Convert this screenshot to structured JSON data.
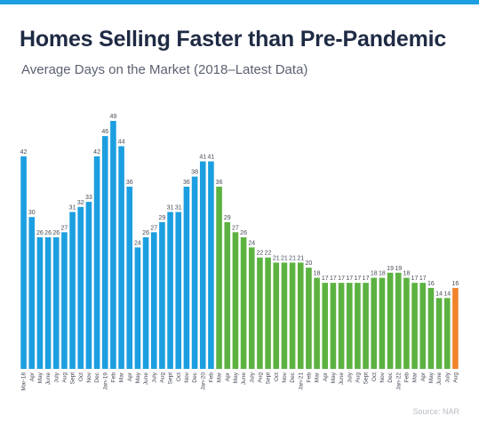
{
  "header": {
    "title": "Homes Selling Faster than Pre-Pandemic",
    "subtitle": "Average Days on the Market (2018–Latest Data)"
  },
  "footer": {
    "source": "Source: NAR"
  },
  "colors": {
    "pre_pandemic": "#1c9fe0",
    "pandemic": "#5cb240",
    "latest": "#f0832c",
    "accent_bar": "#1c9fe0"
  },
  "chart_data": {
    "type": "bar",
    "title": "Homes Selling Faster than Pre-Pandemic",
    "subtitle": "Average Days on the Market (2018–Latest Data)",
    "xlabel": "",
    "ylabel": "",
    "ylim": [
      0,
      52
    ],
    "grid": false,
    "legend": "none",
    "categories": [
      "Mar-18",
      "Apr",
      "May",
      "June",
      "July",
      "Aug",
      "Sept",
      "Oct",
      "Nov",
      "Dec",
      "Jan-19",
      "Feb",
      "Mar",
      "Apr",
      "May",
      "June",
      "July",
      "Aug",
      "Sept",
      "Oct",
      "Nov",
      "Dec",
      "Jan-20",
      "Feb",
      "Mar",
      "Apr",
      "May",
      "June",
      "July",
      "Aug",
      "Sept",
      "Oct",
      "Nov",
      "Dec",
      "Jan-21",
      "Feb",
      "Mar",
      "Apr",
      "May",
      "June",
      "July",
      "Aug",
      "Sept",
      "Oct",
      "Nov",
      "Dec",
      "Jan-22",
      "Feb",
      "Mar",
      "Apr",
      "May",
      "June",
      "July",
      "Aug"
    ],
    "values": [
      42,
      30,
      26,
      26,
      26,
      27,
      31,
      32,
      33,
      42,
      46,
      49,
      44,
      36,
      24,
      26,
      27,
      29,
      31,
      31,
      36,
      38,
      41,
      41,
      36,
      29,
      27,
      26,
      24,
      22,
      22,
      21,
      21,
      21,
      21,
      20,
      18,
      17,
      17,
      17,
      17,
      17,
      17,
      18,
      18,
      19,
      19,
      18,
      17,
      17,
      16,
      14,
      14,
      16
    ],
    "colors": [
      "#1c9fe0",
      "#1c9fe0",
      "#1c9fe0",
      "#1c9fe0",
      "#1c9fe0",
      "#1c9fe0",
      "#1c9fe0",
      "#1c9fe0",
      "#1c9fe0",
      "#1c9fe0",
      "#1c9fe0",
      "#1c9fe0",
      "#1c9fe0",
      "#1c9fe0",
      "#1c9fe0",
      "#1c9fe0",
      "#1c9fe0",
      "#1c9fe0",
      "#1c9fe0",
      "#1c9fe0",
      "#1c9fe0",
      "#1c9fe0",
      "#1c9fe0",
      "#1c9fe0",
      "#5cb240",
      "#5cb240",
      "#5cb240",
      "#5cb240",
      "#5cb240",
      "#5cb240",
      "#5cb240",
      "#5cb240",
      "#5cb240",
      "#5cb240",
      "#5cb240",
      "#5cb240",
      "#5cb240",
      "#5cb240",
      "#5cb240",
      "#5cb240",
      "#5cb240",
      "#5cb240",
      "#5cb240",
      "#5cb240",
      "#5cb240",
      "#5cb240",
      "#5cb240",
      "#5cb240",
      "#5cb240",
      "#5cb240",
      "#5cb240",
      "#5cb240",
      "#5cb240",
      "#f0832c"
    ]
  }
}
